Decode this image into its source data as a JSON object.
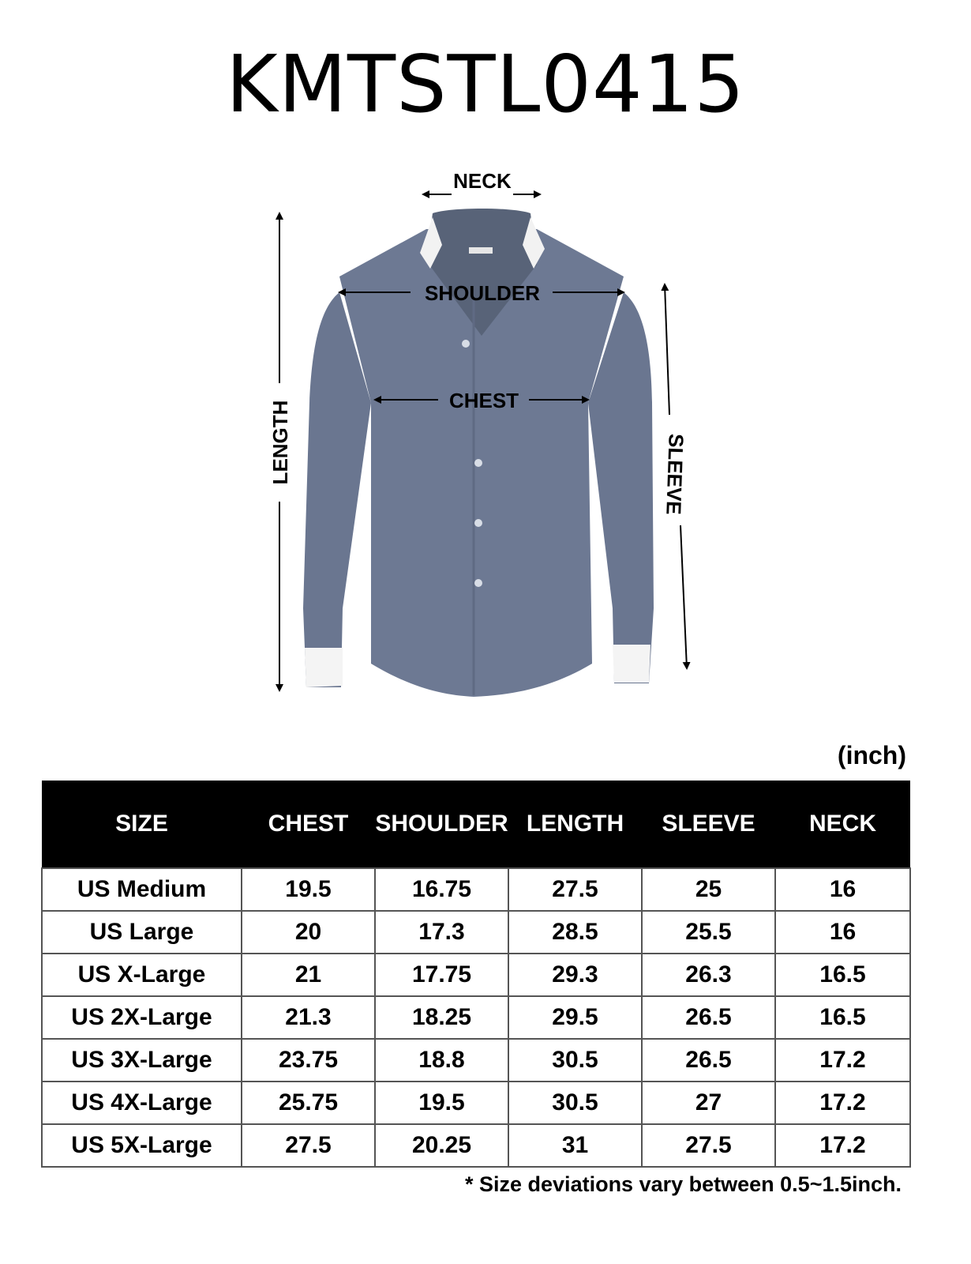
{
  "title": "KMTSTL0415",
  "diagram": {
    "labels": {
      "neck": "NECK",
      "shoulder": "SHOULDER",
      "chest": "CHEST",
      "length": "LENGTH",
      "sleeve": "SLEEVE"
    },
    "shirt_color": "#6a7690"
  },
  "unit": "(inch)",
  "table": {
    "headers": [
      "SIZE",
      "CHEST",
      "SHOULDER",
      "LENGTH",
      "SLEEVE",
      "NECK"
    ],
    "rows": [
      [
        "US Medium",
        "19.5",
        "16.75",
        "27.5",
        "25",
        "16"
      ],
      [
        "US Large",
        "20",
        "17.3",
        "28.5",
        "25.5",
        "16"
      ],
      [
        "US X-Large",
        "21",
        "17.75",
        "29.3",
        "26.3",
        "16.5"
      ],
      [
        "US 2X-Large",
        "21.3",
        "18.25",
        "29.5",
        "26.5",
        "16.5"
      ],
      [
        "US 3X-Large",
        "23.75",
        "18.8",
        "30.5",
        "26.5",
        "17.2"
      ],
      [
        "US 4X-Large",
        "25.75",
        "19.5",
        "30.5",
        "27",
        "17.2"
      ],
      [
        "US 5X-Large",
        "27.5",
        "20.25",
        "31",
        "27.5",
        "17.2"
      ]
    ]
  },
  "note": "* Size deviations vary between 0.5~1.5inch."
}
